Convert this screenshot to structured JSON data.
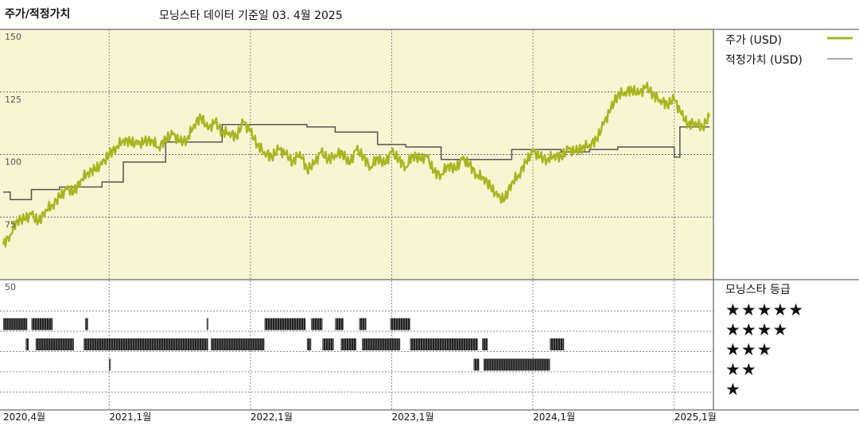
{
  "header": {
    "title": "주가/적정가치",
    "subtitle": "모닝스타 데이터 기준일 03. 4월 2025"
  },
  "legend": {
    "price_label": "주가 (USD)",
    "fair_value_label": "적정가치 (USD)"
  },
  "rating_panel": {
    "title": "모닝스타 등급",
    "stars": [
      "★★★★★",
      "★★★★",
      "★★★",
      "★★",
      "★"
    ]
  },
  "colors": {
    "price_line": "#a9b51f",
    "fair_value_line": "#555555",
    "plot_background": "#f8f5d3",
    "rating_bar": "#222222"
  },
  "chart_data": {
    "type": "line",
    "y_ticks": [
      "150",
      "125",
      "100",
      "75"
    ],
    "ylim": [
      50,
      150
    ],
    "x_ticks": [
      "2020,4월",
      "2021,1월",
      "2022,1월",
      "2023,1월",
      "2024,1월",
      "2025,1월"
    ],
    "xlim": [
      2020.25,
      2025.3
    ],
    "series": [
      {
        "name": "주가 (USD)",
        "x": [
          2020.25,
          2020.3,
          2020.35,
          2020.4,
          2020.45,
          2020.5,
          2020.55,
          2020.6,
          2020.65,
          2020.7,
          2020.75,
          2020.8,
          2020.85,
          2020.9,
          2020.95,
          2021.0,
          2021.05,
          2021.1,
          2021.15,
          2021.2,
          2021.25,
          2021.3,
          2021.35,
          2021.4,
          2021.45,
          2021.5,
          2021.55,
          2021.6,
          2021.65,
          2021.7,
          2021.75,
          2021.8,
          2021.85,
          2021.9,
          2021.95,
          2022.0,
          2022.05,
          2022.1,
          2022.15,
          2022.2,
          2022.25,
          2022.3,
          2022.35,
          2022.4,
          2022.45,
          2022.5,
          2022.55,
          2022.6,
          2022.65,
          2022.7,
          2022.75,
          2022.8,
          2022.85,
          2022.9,
          2022.95,
          2023.0,
          2023.05,
          2023.1,
          2023.15,
          2023.2,
          2023.25,
          2023.3,
          2023.35,
          2023.4,
          2023.45,
          2023.5,
          2023.55,
          2023.6,
          2023.65,
          2023.7,
          2023.75,
          2023.8,
          2023.85,
          2023.9,
          2023.95,
          2024.0,
          2024.05,
          2024.1,
          2024.15,
          2024.2,
          2024.25,
          2024.3,
          2024.35,
          2024.4,
          2024.45,
          2024.5,
          2024.55,
          2024.6,
          2024.65,
          2024.7,
          2024.75,
          2024.8,
          2024.85,
          2024.9,
          2024.95,
          2025.0,
          2025.05,
          2025.1,
          2025.15,
          2025.2,
          2025.25
        ],
        "values": [
          64,
          68,
          74,
          74,
          76,
          73,
          78,
          80,
          83,
          86,
          85,
          90,
          93,
          94,
          96,
          100,
          103,
          106,
          105,
          104,
          105,
          106,
          103,
          106,
          108,
          105,
          106,
          112,
          115,
          110,
          113,
          109,
          109,
          107,
          113,
          109,
          104,
          101,
          99,
          102,
          100,
          97,
          101,
          94,
          96,
          101,
          98,
          100,
          101,
          96,
          102,
          99,
          95,
          99,
          96,
          101,
          98,
          95,
          100,
          98,
          99,
          93,
          92,
          96,
          94,
          98,
          96,
          92,
          91,
          87,
          83,
          82,
          89,
          92,
          97,
          101,
          99,
          98,
          100,
          99,
          102,
          101,
          103,
          104,
          106,
          112,
          118,
          124,
          125,
          126,
          124,
          127,
          124,
          122,
          120,
          122,
          116,
          112,
          113,
          111,
          115
        ]
      },
      {
        "name": "적정가치 (USD)",
        "x": [
          2020.25,
          2020.3,
          2020.3,
          2020.45,
          2020.45,
          2020.65,
          2020.65,
          2020.95,
          2020.95,
          2021.1,
          2021.1,
          2021.2,
          2021.2,
          2021.4,
          2021.4,
          2021.8,
          2021.8,
          2022.4,
          2022.4,
          2022.6,
          2022.6,
          2022.9,
          2022.9,
          2023.1,
          2023.1,
          2023.35,
          2023.35,
          2023.6,
          2023.6,
          2023.85,
          2023.85,
          2024.2,
          2024.2,
          2024.4,
          2024.4,
          2024.6,
          2024.6,
          2024.75,
          2024.75,
          2025.0,
          2025.0,
          2025.04,
          2025.04,
          2025.25
        ],
        "values": [
          85,
          85,
          82,
          82,
          86,
          86,
          87,
          87,
          89,
          89,
          97,
          97,
          97,
          97,
          105,
          105,
          112,
          112,
          111,
          111,
          109,
          109,
          104,
          104,
          103,
          103,
          98,
          98,
          98,
          98,
          102,
          102,
          101,
          101,
          102,
          102,
          103,
          103,
          103,
          103,
          99,
          99,
          111,
          111
        ]
      }
    ]
  },
  "rating_bars": {
    "rows": [
      5,
      4,
      3,
      2,
      1
    ],
    "segments": [
      {
        "rating": 4,
        "start": 2020.25,
        "end": 2020.42
      },
      {
        "rating": 4,
        "start": 2020.45,
        "end": 2020.6
      },
      {
        "rating": 4,
        "start": 2020.83,
        "end": 2020.85
      },
      {
        "rating": 4,
        "start": 2021.69,
        "end": 2021.7
      },
      {
        "rating": 4,
        "start": 2022.1,
        "end": 2022.39
      },
      {
        "rating": 4,
        "start": 2022.43,
        "end": 2022.51
      },
      {
        "rating": 4,
        "start": 2022.6,
        "end": 2022.66
      },
      {
        "rating": 4,
        "start": 2022.77,
        "end": 2022.82
      },
      {
        "rating": 4,
        "start": 2022.99,
        "end": 2023.13
      },
      {
        "rating": 3,
        "start": 2020.41,
        "end": 2020.43
      },
      {
        "rating": 3,
        "start": 2020.48,
        "end": 2020.75
      },
      {
        "rating": 3,
        "start": 2020.82,
        "end": 2021.7
      },
      {
        "rating": 3,
        "start": 2021.72,
        "end": 2022.1
      },
      {
        "rating": 3,
        "start": 2022.4,
        "end": 2022.43
      },
      {
        "rating": 3,
        "start": 2022.51,
        "end": 2022.59
      },
      {
        "rating": 3,
        "start": 2022.64,
        "end": 2022.75
      },
      {
        "rating": 3,
        "start": 2022.79,
        "end": 2023.06
      },
      {
        "rating": 3,
        "start": 2023.13,
        "end": 2023.61
      },
      {
        "rating": 3,
        "start": 2023.64,
        "end": 2023.68
      },
      {
        "rating": 3,
        "start": 2024.12,
        "end": 2024.22
      },
      {
        "rating": 2,
        "start": 2021.0,
        "end": 2021.01
      },
      {
        "rating": 2,
        "start": 2023.58,
        "end": 2023.62
      },
      {
        "rating": 2,
        "start": 2023.65,
        "end": 2024.12
      }
    ]
  }
}
